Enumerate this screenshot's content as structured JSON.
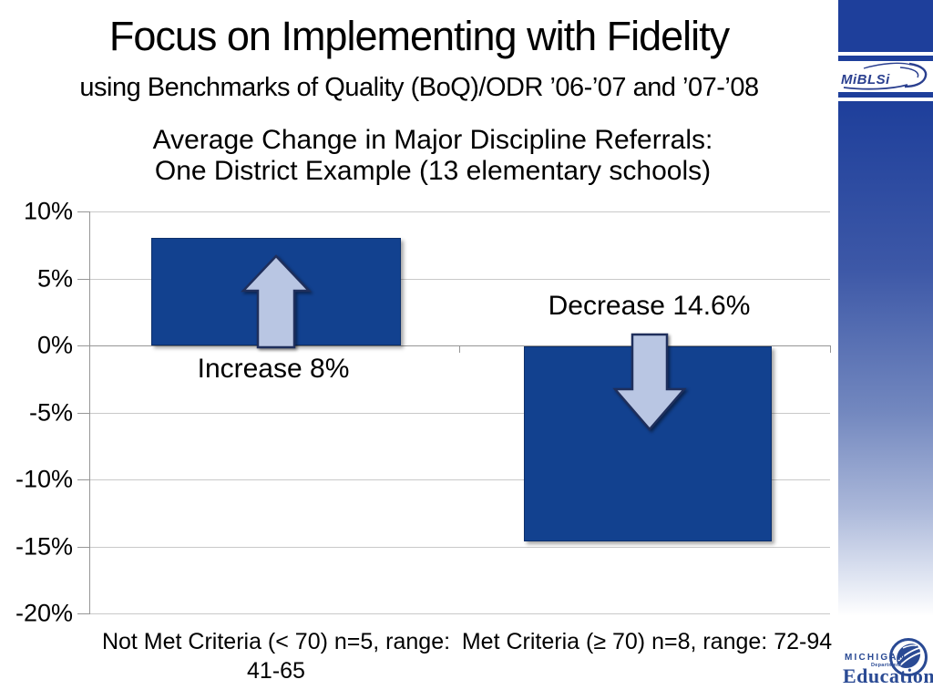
{
  "slide": {
    "title": "Focus on Implementing with Fidelity",
    "subtitle": "using Benchmarks of Quality (BoQ)/ODR ’06-’07 and ’07-’08"
  },
  "chart_data": {
    "type": "bar",
    "title": "Average Change in Major Discipline Referrals:\nOne District Example (13 elementary schools)",
    "categories": [
      "Not Met Criteria (< 70) n=5, range: 41-65",
      "Met Criteria (≥ 70) n=8, range: 72-94"
    ],
    "values": [
      8,
      -14.6
    ],
    "annotations": [
      {
        "text": "Increase 8%",
        "arrow": "up"
      },
      {
        "text": "Decrease 14.6%",
        "arrow": "down"
      }
    ],
    "yticks": [
      "10%",
      "5%",
      "0%",
      "-5%",
      "-10%",
      "-15%",
      "-20%"
    ],
    "ylim": [
      -20,
      10
    ],
    "xlabel": "",
    "ylabel": "",
    "grid": true,
    "legend": false,
    "bar_color": "#12418f",
    "arrow_fill_color": "#b9c6e3",
    "arrow_outline_color": "#1f2f5c"
  },
  "sidebar": {
    "miblsi_logo_text": "MiBLSi",
    "accent_color": "#1e3f9b",
    "education_logo": {
      "line1": "MICHIGAN",
      "line2": "Department of",
      "line3": "Education",
      "color": "#2a4a94"
    }
  }
}
